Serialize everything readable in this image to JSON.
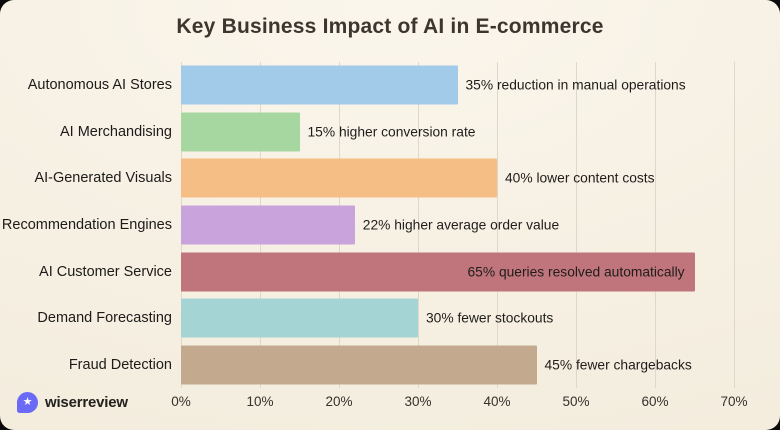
{
  "title": "Key Business Impact of AI in E-commerce",
  "chart_data": {
    "type": "bar",
    "orientation": "horizontal",
    "title": "Key Business Impact of AI in E-commerce",
    "categories": [
      "Autonomous AI Stores",
      "AI Merchandising",
      "AI-Generated Visuals",
      "Recommendation Engines",
      "AI Customer Service",
      "Demand Forecasting",
      "Fraud Detection"
    ],
    "values": [
      35,
      15,
      40,
      22,
      65,
      30,
      45
    ],
    "annotations": [
      "35% reduction in manual operations",
      "15% higher conversion rate",
      "40% lower content costs",
      "22% higher average order value",
      "65% queries resolved automatically",
      "30% fewer stockouts",
      "45% fewer chargebacks"
    ],
    "bar_colors": [
      "#a2cae9",
      "#a7d7a0",
      "#f4be85",
      "#c9a3dc",
      "#c0747b",
      "#a5d4d5",
      "#c3aa8f"
    ],
    "xlim": [
      0,
      70
    ],
    "x_tick_labels": [
      "0%",
      "10%",
      "20%",
      "30%",
      "40%",
      "50%",
      "60%",
      "70%"
    ],
    "grid": "vertical",
    "legend": "none"
  },
  "footer": {
    "brand": "wiserreview",
    "logo_icon": "star-bubble-icon",
    "logo_color": "#6b6af6",
    "logo_star": "★"
  },
  "theme": {
    "background": "#f6f0e3",
    "title_color": "#3d362e",
    "text_color": "#1f1d1b",
    "gridline_color": "#ddd8ca"
  }
}
